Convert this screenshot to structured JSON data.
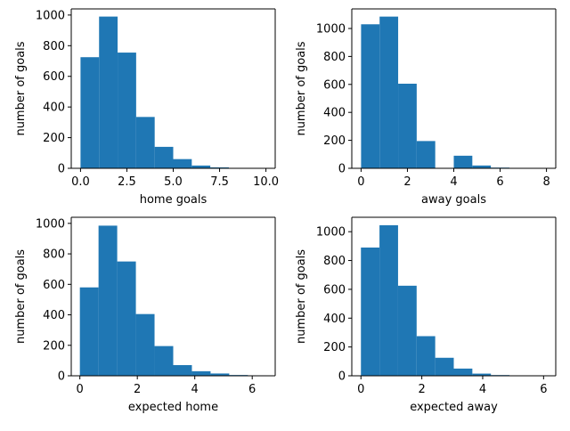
{
  "colors": {
    "bar": "#1f77b4",
    "axis": "#000000",
    "background": "#ffffff"
  },
  "chart_data": [
    {
      "type": "bar",
      "title": "",
      "xlabel": "home goals",
      "ylabel": "number of goals",
      "bin_edges": [
        0,
        1,
        2,
        3,
        4,
        5,
        6,
        7,
        8,
        9,
        10
      ],
      "values": [
        725,
        990,
        755,
        335,
        140,
        60,
        18,
        6,
        1,
        1
      ],
      "xlim": [
        -0.5,
        10.5
      ],
      "ylim": [
        0,
        1040
      ],
      "xticks": [
        0.0,
        2.5,
        5.0,
        7.5,
        10.0
      ],
      "xtick_labels": [
        "0.0",
        "2.5",
        "5.0",
        "7.5",
        "10.0"
      ],
      "yticks": [
        0,
        200,
        400,
        600,
        800,
        1000
      ],
      "ytick_labels": [
        "0",
        "200",
        "400",
        "600",
        "800",
        "1000"
      ]
    },
    {
      "type": "bar",
      "title": "",
      "xlabel": "away goals",
      "ylabel": "number of goals",
      "bin_edges": [
        0,
        0.8,
        1.6,
        2.4,
        3.2,
        4.0,
        4.8,
        5.6,
        6.4,
        7.2,
        8.0
      ],
      "values": [
        1030,
        1085,
        605,
        195,
        0,
        90,
        20,
        5,
        0,
        1
      ],
      "xlim": [
        -0.4,
        8.4
      ],
      "ylim": [
        0,
        1140
      ],
      "xticks": [
        0,
        2,
        4,
        6,
        8
      ],
      "xtick_labels": [
        "0",
        "2",
        "4",
        "6",
        "8"
      ],
      "yticks": [
        0,
        200,
        400,
        600,
        800,
        1000
      ],
      "ytick_labels": [
        "0",
        "200",
        "400",
        "600",
        "800",
        "1000"
      ]
    },
    {
      "type": "bar",
      "title": "",
      "xlabel": "expected home",
      "ylabel": "number of goals",
      "bin_edges": [
        0.0,
        0.65,
        1.3,
        1.95,
        2.6,
        3.25,
        3.9,
        4.55,
        5.2,
        5.85,
        6.5
      ],
      "values": [
        580,
        985,
        750,
        405,
        195,
        70,
        30,
        15,
        5,
        3
      ],
      "xlim": [
        -0.3,
        6.8
      ],
      "ylim": [
        0,
        1040
      ],
      "xticks": [
        0,
        2,
        4,
        6
      ],
      "xtick_labels": [
        "0",
        "2",
        "4",
        "6"
      ],
      "yticks": [
        0,
        200,
        400,
        600,
        800,
        1000
      ],
      "ytick_labels": [
        "0",
        "200",
        "400",
        "600",
        "800",
        "1000"
      ]
    },
    {
      "type": "bar",
      "title": "",
      "xlabel": "expected away",
      "ylabel": "number of goals",
      "bin_edges": [
        0.0,
        0.61,
        1.22,
        1.83,
        2.44,
        3.05,
        3.66,
        4.27,
        4.88,
        5.49,
        6.1
      ],
      "values": [
        890,
        1045,
        625,
        275,
        125,
        50,
        15,
        5,
        0,
        3
      ],
      "xlim": [
        -0.3,
        6.4
      ],
      "ylim": [
        0,
        1100
      ],
      "xticks": [
        0,
        2,
        4,
        6
      ],
      "xtick_labels": [
        "0",
        "2",
        "4",
        "6"
      ],
      "yticks": [
        0,
        200,
        400,
        600,
        800,
        1000
      ],
      "ytick_labels": [
        "0",
        "200",
        "400",
        "600",
        "800",
        "1000"
      ]
    }
  ]
}
